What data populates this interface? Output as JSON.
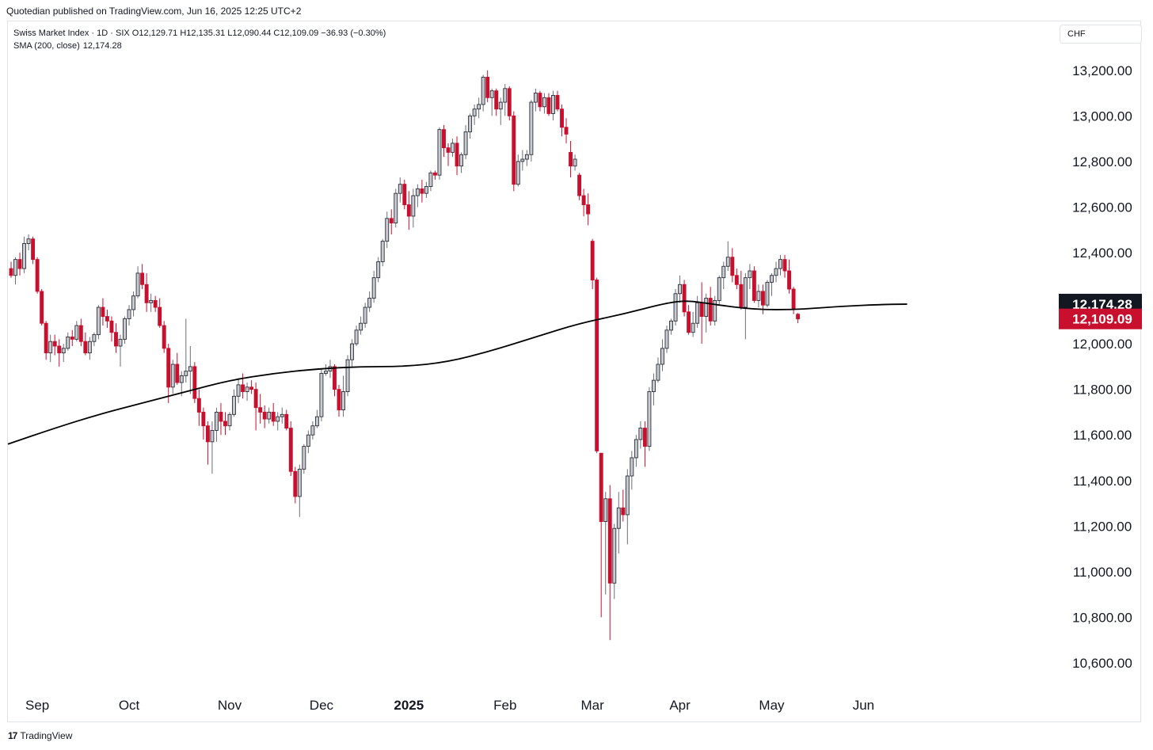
{
  "header": {
    "published": "Quotedian published on TradingView.com, Jun 16, 2025 12:25 UTC+2"
  },
  "legend": {
    "symbol": "Swiss Market Index · 1D · SIX",
    "ohlc": "O12,129.71 H12,135.31 L12,090.44 C12,109.09 −36.93 (−0.30%)",
    "sma_label": "SMA (200, close)",
    "sma_value": "12,174.28"
  },
  "currency": "CHF",
  "footer": {
    "logo": "17",
    "brand": "TradingView"
  },
  "colors": {
    "up": "#b2b5be",
    "down": "#c8102e",
    "sma": "#000000",
    "price_badge": "#c8102e",
    "sma_badge": "#131722"
  },
  "chart_data": {
    "type": "candlestick",
    "ylim": [
      10520,
      13300
    ],
    "y_ticks": [
      10600,
      10800,
      11000,
      11200,
      11400,
      11600,
      11800,
      12000,
      12200,
      12400,
      12600,
      12800,
      13000,
      13200
    ],
    "y_tick_labels": [
      "10,600.00",
      "10,800.00",
      "11,000.00",
      "11,200.00",
      "11,400.00",
      "11,600.00",
      "11,800.00",
      "12,000.00",
      "12,200.00",
      "12,400.00",
      "12,600.00",
      "12,800.00",
      "13,000.00",
      "13,200.00"
    ],
    "x_labels": [
      {
        "label": "Sep",
        "day": 6,
        "bold": false
      },
      {
        "label": "Oct",
        "day": 27,
        "bold": false
      },
      {
        "label": "Nov",
        "day": 50,
        "bold": false
      },
      {
        "label": "Dec",
        "day": 71,
        "bold": false
      },
      {
        "label": "2025",
        "day": 91,
        "bold": true
      },
      {
        "label": "Feb",
        "day": 113,
        "bold": false
      },
      {
        "label": "Mar",
        "day": 133,
        "bold": false
      },
      {
        "label": "Apr",
        "day": 153,
        "bold": false
      },
      {
        "label": "May",
        "day": 174,
        "bold": false
      },
      {
        "label": "Jun",
        "day": 195,
        "bold": false
      }
    ],
    "last_price": {
      "value": 12109.09,
      "label": "12,109.09"
    },
    "sma_last": {
      "value": 12174.28,
      "label": "12,174.28"
    },
    "sma": [
      {
        "day": 0,
        "value": 11560
      },
      {
        "day": 10,
        "value": 11630
      },
      {
        "day": 20,
        "value": 11690
      },
      {
        "day": 30,
        "value": 11740
      },
      {
        "day": 40,
        "value": 11790
      },
      {
        "day": 50,
        "value": 11840
      },
      {
        "day": 60,
        "value": 11870
      },
      {
        "day": 70,
        "value": 11890
      },
      {
        "day": 80,
        "value": 11900
      },
      {
        "day": 90,
        "value": 11900
      },
      {
        "day": 100,
        "value": 11920
      },
      {
        "day": 110,
        "value": 11970
      },
      {
        "day": 120,
        "value": 12030
      },
      {
        "day": 130,
        "value": 12090
      },
      {
        "day": 140,
        "value": 12130
      },
      {
        "day": 150,
        "value": 12180
      },
      {
        "day": 155,
        "value": 12190
      },
      {
        "day": 160,
        "value": 12175
      },
      {
        "day": 170,
        "value": 12150
      },
      {
        "day": 180,
        "value": 12150
      },
      {
        "day": 190,
        "value": 12165
      },
      {
        "day": 200,
        "value": 12173
      },
      {
        "day": 205,
        "value": 12174
      }
    ],
    "ohlc": [
      [
        12330,
        12360,
        12290,
        12300
      ],
      [
        12300,
        12380,
        12260,
        12370
      ],
      [
        12370,
        12400,
        12300,
        12330
      ],
      [
        12330,
        12470,
        12310,
        12440
      ],
      [
        12440,
        12480,
        12410,
        12460
      ],
      [
        12460,
        12470,
        12350,
        12370
      ],
      [
        12370,
        12380,
        12220,
        12230
      ],
      [
        12230,
        12240,
        12080,
        12090
      ],
      [
        12090,
        12100,
        11930,
        11960
      ],
      [
        11960,
        12040,
        11920,
        12010
      ],
      [
        12010,
        12040,
        11950,
        11990
      ],
      [
        11990,
        12020,
        11900,
        11960
      ],
      [
        11960,
        12000,
        11920,
        11980
      ],
      [
        11980,
        12050,
        11970,
        12030
      ],
      [
        12030,
        12060,
        11990,
        12020
      ],
      [
        12020,
        12100,
        12010,
        12080
      ],
      [
        12080,
        12110,
        11990,
        12010
      ],
      [
        12010,
        12050,
        11950,
        11960
      ],
      [
        11960,
        12030,
        11930,
        12010
      ],
      [
        12010,
        12050,
        11990,
        12040
      ],
      [
        12040,
        12170,
        12020,
        12160
      ],
      [
        12160,
        12200,
        12080,
        12120
      ],
      [
        12120,
        12150,
        12070,
        12100
      ],
      [
        12100,
        12120,
        12010,
        12050
      ],
      [
        12050,
        12090,
        11960,
        11990
      ],
      [
        11990,
        12040,
        11900,
        12020
      ],
      [
        12020,
        12120,
        12000,
        12110
      ],
      [
        12110,
        12170,
        12080,
        12150
      ],
      [
        12150,
        12230,
        12120,
        12210
      ],
      [
        12210,
        12340,
        12200,
        12310
      ],
      [
        12310,
        12350,
        12240,
        12260
      ],
      [
        12260,
        12310,
        12140,
        12180
      ],
      [
        12180,
        12220,
        12140,
        12190
      ],
      [
        12190,
        12210,
        12140,
        12160
      ],
      [
        12160,
        12200,
        12070,
        12080
      ],
      [
        12080,
        12100,
        11960,
        11980
      ],
      [
        11980,
        12000,
        11740,
        11810
      ],
      [
        11810,
        11930,
        11780,
        11910
      ],
      [
        11910,
        11960,
        11820,
        11830
      ],
      [
        11830,
        11880,
        11770,
        11860
      ],
      [
        11860,
        12110,
        11830,
        11880
      ],
      [
        11880,
        11990,
        11780,
        11900
      ],
      [
        11900,
        11920,
        11740,
        11760
      ],
      [
        11760,
        11800,
        11640,
        11700
      ],
      [
        11700,
        11720,
        11580,
        11640
      ],
      [
        11640,
        11660,
        11470,
        11570
      ],
      [
        11570,
        11660,
        11430,
        11620
      ],
      [
        11620,
        11720,
        11570,
        11700
      ],
      [
        11700,
        11740,
        11600,
        11660
      ],
      [
        11660,
        11700,
        11600,
        11640
      ],
      [
        11640,
        11700,
        11620,
        11690
      ],
      [
        11690,
        11800,
        11680,
        11770
      ],
      [
        11770,
        11850,
        11740,
        11820
      ],
      [
        11820,
        11870,
        11760,
        11790
      ],
      [
        11790,
        11830,
        11750,
        11810
      ],
      [
        11810,
        11840,
        11780,
        11800
      ],
      [
        11800,
        11830,
        11620,
        11720
      ],
      [
        11720,
        11780,
        11650,
        11700
      ],
      [
        11700,
        11730,
        11630,
        11670
      ],
      [
        11670,
        11720,
        11650,
        11700
      ],
      [
        11700,
        11740,
        11640,
        11660
      ],
      [
        11660,
        11700,
        11620,
        11680
      ],
      [
        11680,
        11720,
        11650,
        11690
      ],
      [
        11690,
        11710,
        11620,
        11630
      ],
      [
        11630,
        11660,
        11420,
        11440
      ],
      [
        11440,
        11460,
        11300,
        11330
      ],
      [
        11330,
        11470,
        11240,
        11450
      ],
      [
        11450,
        11560,
        11430,
        11550
      ],
      [
        11550,
        11620,
        11520,
        11600
      ],
      [
        11600,
        11660,
        11580,
        11640
      ],
      [
        11640,
        11710,
        11630,
        11680
      ],
      [
        11680,
        11890,
        11660,
        11870
      ],
      [
        11870,
        11910,
        11860,
        11880
      ],
      [
        11880,
        11930,
        11850,
        11900
      ],
      [
        11900,
        11910,
        11770,
        11800
      ],
      [
        11800,
        11820,
        11680,
        11710
      ],
      [
        11710,
        11860,
        11680,
        11790
      ],
      [
        11790,
        11950,
        11770,
        11930
      ],
      [
        11930,
        12020,
        11900,
        12000
      ],
      [
        12000,
        12080,
        11990,
        12060
      ],
      [
        12060,
        12120,
        12040,
        12090
      ],
      [
        12090,
        12180,
        12070,
        12160
      ],
      [
        12160,
        12230,
        12140,
        12200
      ],
      [
        12200,
        12320,
        12180,
        12290
      ],
      [
        12290,
        12380,
        12270,
        12360
      ],
      [
        12360,
        12460,
        12340,
        12450
      ],
      [
        12450,
        12580,
        12420,
        12550
      ],
      [
        12550,
        12590,
        12480,
        12530
      ],
      [
        12530,
        12680,
        12510,
        12660
      ],
      [
        12660,
        12730,
        12620,
        12700
      ],
      [
        12700,
        12720,
        12590,
        12610
      ],
      [
        12610,
        12670,
        12500,
        12560
      ],
      [
        12560,
        12680,
        12510,
        12650
      ],
      [
        12650,
        12700,
        12600,
        12680
      ],
      [
        12680,
        12720,
        12620,
        12660
      ],
      [
        12660,
        12710,
        12640,
        12690
      ],
      [
        12690,
        12760,
        12670,
        12750
      ],
      [
        12750,
        12760,
        12720,
        12740
      ],
      [
        12740,
        12950,
        12720,
        12940
      ],
      [
        12940,
        12960,
        12820,
        12860
      ],
      [
        12860,
        12880,
        12780,
        12840
      ],
      [
        12840,
        12900,
        12820,
        12880
      ],
      [
        12880,
        12910,
        12740,
        12780
      ],
      [
        12780,
        12840,
        12750,
        12830
      ],
      [
        12830,
        12960,
        12810,
        12930
      ],
      [
        12930,
        13010,
        12900,
        13000
      ],
      [
        13000,
        13050,
        12960,
        13030
      ],
      [
        13030,
        13080,
        12990,
        13050
      ],
      [
        13050,
        13180,
        13020,
        13170
      ],
      [
        13170,
        13200,
        13060,
        13080
      ],
      [
        13080,
        13120,
        13000,
        13110
      ],
      [
        13110,
        13120,
        13000,
        13030
      ],
      [
        13030,
        13080,
        12960,
        13060
      ],
      [
        13060,
        13140,
        13000,
        13120
      ],
      [
        13120,
        13130,
        12980,
        13000
      ],
      [
        13000,
        13020,
        12670,
        12700
      ],
      [
        12700,
        12830,
        12690,
        12800
      ],
      [
        12800,
        12850,
        12760,
        12810
      ],
      [
        12810,
        12850,
        12780,
        12830
      ],
      [
        12830,
        13070,
        12800,
        13060
      ],
      [
        13060,
        13120,
        13020,
        13100
      ],
      [
        13100,
        13110,
        13020,
        13040
      ],
      [
        13040,
        13100,
        13010,
        13080
      ],
      [
        13080,
        13100,
        13000,
        13010
      ],
      [
        13010,
        13110,
        12980,
        13090
      ],
      [
        13090,
        13110,
        13020,
        13030
      ],
      [
        13030,
        13050,
        12910,
        12950
      ],
      [
        12950,
        12990,
        12880,
        12920
      ],
      [
        12840,
        12890,
        12730,
        12780
      ],
      [
        12780,
        12830,
        12760,
        12810
      ],
      [
        12740,
        12750,
        12630,
        12650
      ],
      [
        12650,
        12680,
        12560,
        12610
      ],
      [
        12610,
        12660,
        12520,
        12570
      ],
      [
        12450,
        12460,
        12240,
        12280
      ],
      [
        12280,
        12290,
        11520,
        11530
      ],
      [
        11520,
        11520,
        10800,
        11220
      ],
      [
        11220,
        11350,
        10900,
        11320
      ],
      [
        11320,
        11380,
        10700,
        10950
      ],
      [
        10950,
        11210,
        10880,
        11190
      ],
      [
        11190,
        11350,
        11080,
        11280
      ],
      [
        11280,
        11360,
        11220,
        11250
      ],
      [
        11250,
        11450,
        11120,
        11420
      ],
      [
        11420,
        11530,
        11360,
        11500
      ],
      [
        11500,
        11600,
        11460,
        11580
      ],
      [
        11580,
        11660,
        11540,
        11630
      ],
      [
        11630,
        11660,
        11460,
        11550
      ],
      [
        11550,
        11810,
        11530,
        11790
      ],
      [
        11790,
        11870,
        11730,
        11840
      ],
      [
        11840,
        11940,
        11830,
        11910
      ],
      [
        11910,
        12020,
        11880,
        11980
      ],
      [
        11980,
        12080,
        11960,
        12060
      ],
      [
        12060,
        12110,
        12040,
        12100
      ],
      [
        12100,
        12240,
        12080,
        12220
      ],
      [
        12220,
        12300,
        12180,
        12260
      ],
      [
        12260,
        12280,
        12120,
        12140
      ],
      [
        12140,
        12170,
        12040,
        12050
      ],
      [
        12050,
        12140,
        12030,
        12090
      ],
      [
        12090,
        12210,
        12070,
        12180
      ],
      [
        12180,
        12270,
        12000,
        12120
      ],
      [
        12120,
        12220,
        12050,
        12200
      ],
      [
        12200,
        12250,
        12080,
        12100
      ],
      [
        12100,
        12210,
        12080,
        12190
      ],
      [
        12190,
        12300,
        12170,
        12290
      ],
      [
        12290,
        12360,
        12240,
        12340
      ],
      [
        12340,
        12450,
        12320,
        12380
      ],
      [
        12380,
        12420,
        12270,
        12300
      ],
      [
        12300,
        12330,
        12240,
        12260
      ],
      [
        12260,
        12320,
        12150,
        12160
      ],
      [
        12160,
        12310,
        12020,
        12290
      ],
      [
        12290,
        12350,
        12240,
        12320
      ],
      [
        12320,
        12340,
        12180,
        12190
      ],
      [
        12190,
        12260,
        12160,
        12230
      ],
      [
        12230,
        12260,
        12130,
        12170
      ],
      [
        12170,
        12280,
        12160,
        12270
      ],
      [
        12270,
        12310,
        12210,
        12300
      ],
      [
        12300,
        12360,
        12270,
        12330
      ],
      [
        12330,
        12390,
        12300,
        12370
      ],
      [
        12370,
        12390,
        12290,
        12320
      ],
      [
        12320,
        12370,
        12220,
        12240
      ],
      [
        12240,
        12250,
        12130,
        12150
      ],
      [
        12129.71,
        12135.31,
        12090.44,
        12109.09
      ]
    ]
  }
}
